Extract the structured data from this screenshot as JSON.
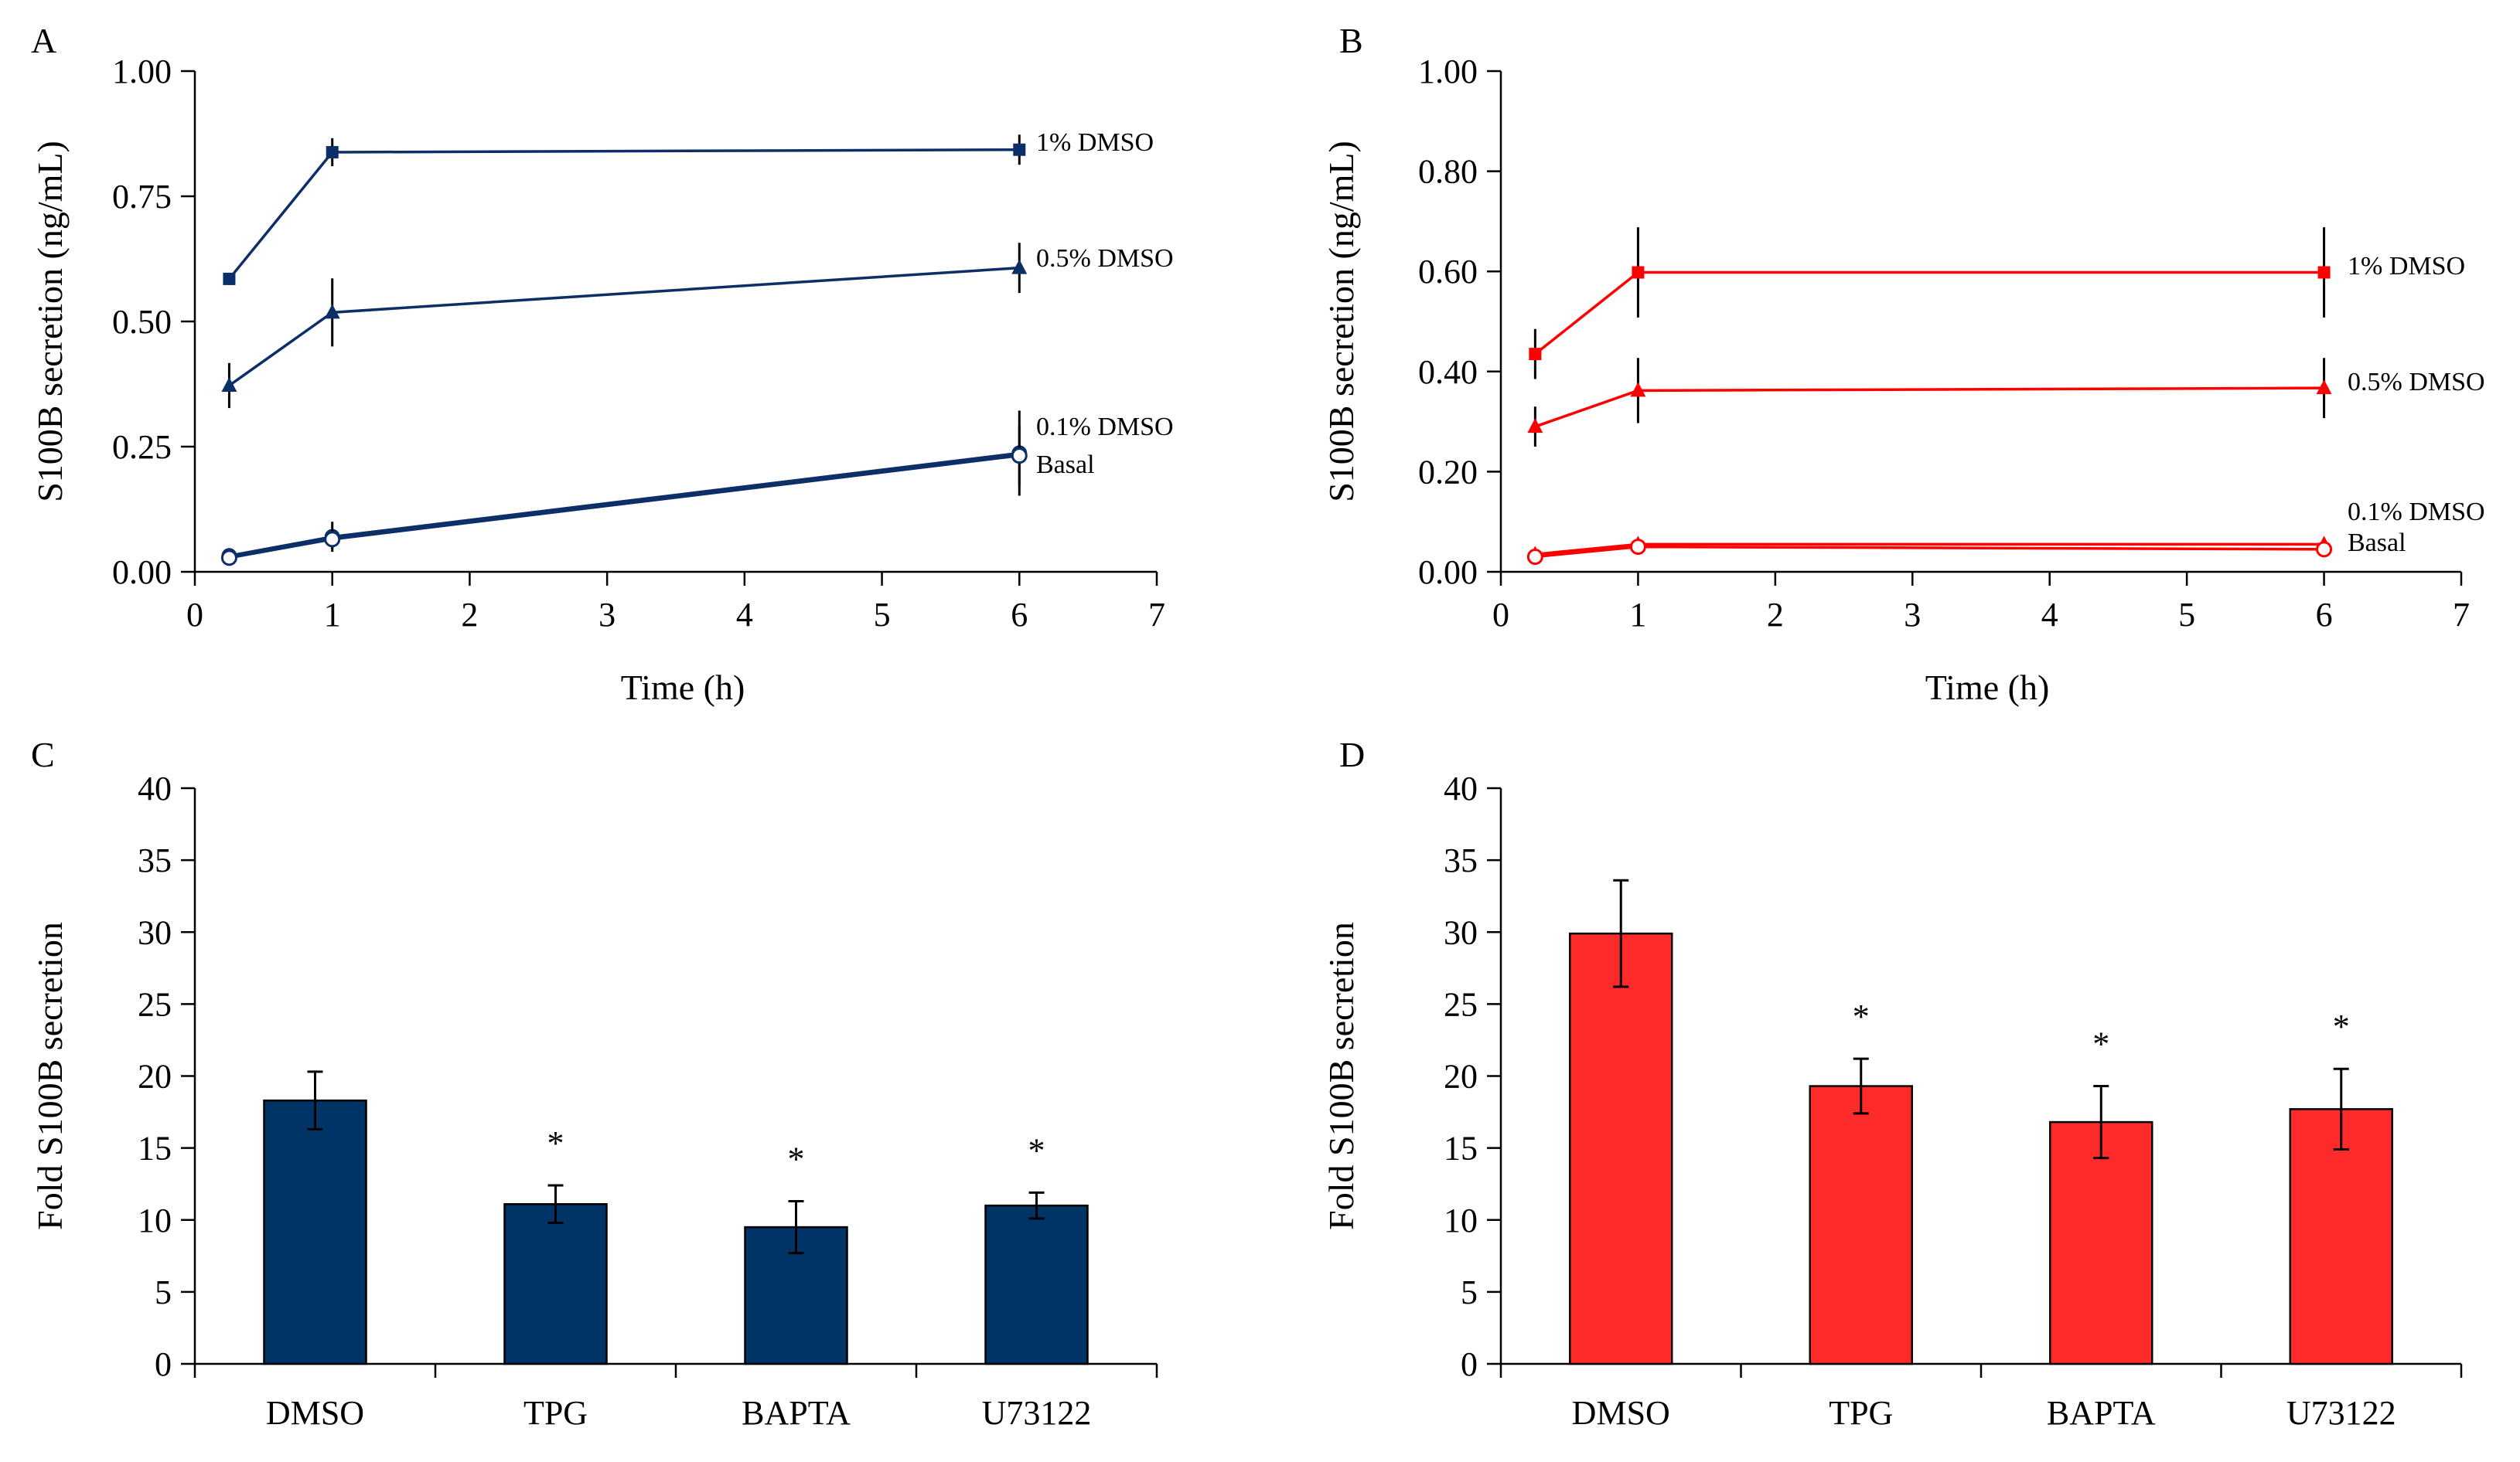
{
  "colors": {
    "blue": "#0c2f68",
    "bar_blue": "#003366",
    "red": "#ff0000",
    "bar_red": "#ff2a2a",
    "axis": "#000000"
  },
  "chart_data": [
    {
      "panel": "A",
      "type": "line",
      "xlabel": "Time (h)",
      "ylabel": "S100B secretion (ng/mL)",
      "xlim": [
        0,
        7
      ],
      "ylim": [
        0,
        1.0
      ],
      "xticks": [
        "0",
        "1",
        "2",
        "3",
        "4",
        "5",
        "6",
        "7"
      ],
      "yticks": [
        "0.00",
        "0.25",
        "0.50",
        "0.75",
        "1.00"
      ],
      "x": [
        0.25,
        1,
        6
      ],
      "series": [
        {
          "name": "1% DMSO",
          "marker": "square",
          "values": [
            0.585,
            0.838,
            0.843
          ],
          "errors": [
            0.012,
            0.028,
            0.03
          ]
        },
        {
          "name": "0.5% DMSO",
          "marker": "triangle",
          "values": [
            0.372,
            0.518,
            0.607
          ],
          "errors": [
            0.045,
            0.068,
            0.05
          ]
        },
        {
          "name": "0.1% DMSO",
          "marker": "circle",
          "values": [
            0.032,
            0.07,
            0.237
          ],
          "errors": [
            0.008,
            0.03,
            0.085
          ]
        },
        {
          "name": "Basal",
          "marker": "open-circle",
          "values": [
            0.028,
            0.065,
            0.232
          ],
          "errors": [
            0.006,
            0.02,
            0.06
          ]
        }
      ]
    },
    {
      "panel": "B",
      "type": "line",
      "xlabel": "Time (h)",
      "ylabel": "S100B secretion (ng/mL)",
      "xlim": [
        0,
        7
      ],
      "ylim": [
        0,
        1.0
      ],
      "xticks": [
        "0",
        "1",
        "2",
        "3",
        "4",
        "5",
        "6",
        "7"
      ],
      "yticks": [
        "0.00",
        "0.20",
        "0.40",
        "0.60",
        "0.80",
        "1.00"
      ],
      "x": [
        0.25,
        1,
        6
      ],
      "series": [
        {
          "name": "1% DMSO",
          "marker": "square",
          "values": [
            0.435,
            0.598,
            0.598
          ],
          "errors": [
            0.05,
            0.09,
            0.09
          ]
        },
        {
          "name": "0.5% DMSO",
          "marker": "triangle",
          "values": [
            0.29,
            0.362,
            0.367
          ],
          "errors": [
            0.04,
            0.065,
            0.06
          ]
        },
        {
          "name": "0.1% DMSO",
          "marker": "triangle",
          "values": [
            0.035,
            0.055,
            0.055
          ],
          "errors": [
            0.005,
            0.01,
            0.01
          ]
        },
        {
          "name": "Basal",
          "marker": "open-circle",
          "values": [
            0.03,
            0.05,
            0.045
          ],
          "errors": [
            0.005,
            0.008,
            0.008
          ]
        }
      ]
    },
    {
      "panel": "C",
      "type": "bar",
      "xlabel": "",
      "ylabel": "Fold S100B secretion",
      "ylim": [
        0,
        40
      ],
      "yticks": [
        "0",
        "5",
        "10",
        "15",
        "20",
        "25",
        "30",
        "35",
        "40"
      ],
      "categories": [
        "DMSO",
        "TPG",
        "BAPTA",
        "U73122"
      ],
      "values": [
        18.3,
        11.1,
        9.5,
        11.0
      ],
      "errors": [
        2.0,
        1.3,
        1.8,
        0.9
      ],
      "significance": [
        "",
        "*",
        "*",
        "*"
      ]
    },
    {
      "panel": "D",
      "type": "bar",
      "xlabel": "",
      "ylabel": "Fold S100B secretion",
      "ylim": [
        0,
        40
      ],
      "yticks": [
        "0",
        "5",
        "10",
        "15",
        "20",
        "25",
        "30",
        "35",
        "40"
      ],
      "categories": [
        "DMSO",
        "TPG",
        "BAPTA",
        "U73122"
      ],
      "values": [
        29.9,
        19.3,
        16.8,
        17.7
      ],
      "errors": [
        3.7,
        1.9,
        2.5,
        2.8
      ],
      "significance": [
        "",
        "*",
        "*",
        "*"
      ]
    }
  ]
}
